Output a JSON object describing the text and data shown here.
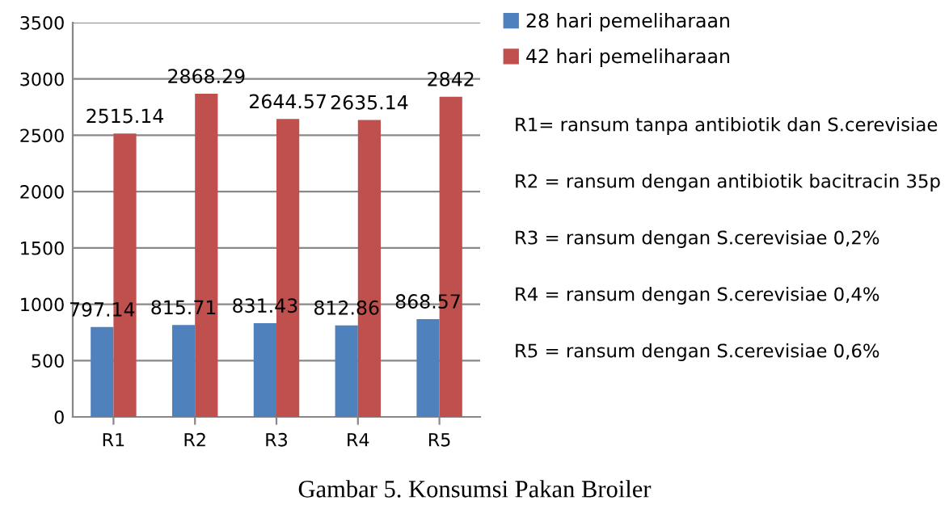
{
  "chart_data": {
    "type": "bar",
    "categories": [
      "R1",
      "R2",
      "R3",
      "R4",
      "R5"
    ],
    "series": [
      {
        "name": "28 hari pemeliharaan",
        "color": "#4f81bd",
        "values": [
          797.14,
          815.71,
          831.43,
          812.86,
          868.57
        ]
      },
      {
        "name": "42 hari pemeliharaan",
        "color": "#c0504d",
        "values": [
          2515.14,
          2868.29,
          2644.57,
          2635.14,
          2842
        ]
      }
    ],
    "ylim": [
      0,
      3500
    ],
    "yticks": [
      0,
      500,
      1000,
      1500,
      2000,
      2500,
      3000,
      3500
    ],
    "grid": "y",
    "legend": "right",
    "data_labels": true,
    "annotations": [
      "R1= ransum tanpa antibiotik dan S.cerevisiae",
      "R2 = ransum dengan antibiotik bacitracin 35p",
      "R3 = ransum dengan S.cerevisiae 0,2%",
      "R4 = ransum dengan S.cerevisiae 0,4%",
      "R5 = ransum dengan S.cerevisiae 0,6%",
      "Gambar 5. Konsumsi Pakan Broiler"
    ]
  }
}
